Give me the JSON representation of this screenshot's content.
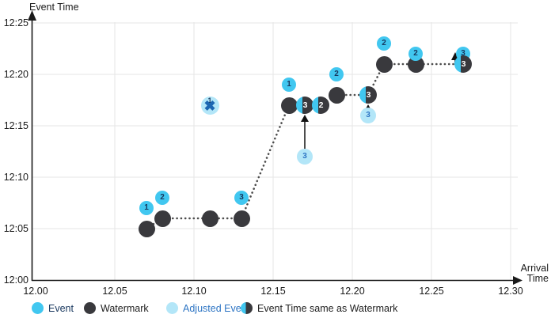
{
  "axis_titles": {
    "y": "Event Time",
    "x": "Arrival\nTime"
  },
  "colors": {
    "event": "#41C7F0",
    "adjusted_event": "#B3E6F8",
    "watermark": "#39393D",
    "number_navy": "#17365D",
    "number_blue": "#2E75C4",
    "dropped_x": "#1C66B2",
    "grid": "#E6E6E6",
    "axis": "#1a1a1a",
    "watermark_line": "#4D4D4D"
  },
  "chart_data": {
    "type": "scatter",
    "title": "",
    "xlabel": "Arrival Time",
    "ylabel": "Event Time",
    "x_axis": {
      "ticks": [
        "12.00",
        "12.05",
        "12.10",
        "12.15",
        "12.20",
        "12.25",
        "12.30"
      ],
      "range": [
        12.0,
        12.3
      ]
    },
    "y_axis": {
      "ticks": [
        "12:00",
        "12:05",
        "12:10",
        "12:15",
        "12:20",
        "12:25"
      ],
      "range": [
        "12:00",
        "12:25"
      ]
    },
    "grid": "on",
    "events": [
      {
        "id": "1",
        "arrival": 12.07,
        "event_time": "12:07"
      },
      {
        "id": "2",
        "arrival": 12.08,
        "event_time": "12:08"
      },
      {
        "id": "3",
        "arrival": 12.13,
        "event_time": "12:08"
      },
      {
        "id": "1",
        "arrival": 12.16,
        "event_time": "12:19"
      },
      {
        "id": "2",
        "arrival": 12.19,
        "event_time": "12:20"
      },
      {
        "id": "2",
        "arrival": 12.22,
        "event_time": "12:23"
      },
      {
        "id": "2",
        "arrival": 12.24,
        "event_time": "12:22"
      },
      {
        "id": "3",
        "arrival": 12.27,
        "event_time": "12:22"
      }
    ],
    "watermarks": [
      {
        "arrival": 12.07,
        "event_time": "12:05"
      },
      {
        "arrival": 12.08,
        "event_time": "12:06"
      },
      {
        "arrival": 12.11,
        "event_time": "12:06"
      },
      {
        "arrival": 12.13,
        "event_time": "12:06"
      },
      {
        "arrival": 12.16,
        "event_time": "12:17"
      },
      {
        "arrival": 12.19,
        "event_time": "12:18"
      },
      {
        "arrival": 12.22,
        "event_time": "12:21"
      },
      {
        "arrival": 12.24,
        "event_time": "12:21"
      }
    ],
    "same_as_watermark": [
      {
        "id": "3",
        "arrival": 12.17,
        "event_time": "12:17"
      },
      {
        "id": "2",
        "arrival": 12.18,
        "event_time": "12:17"
      },
      {
        "id": "3",
        "arrival": 12.21,
        "event_time": "12:18"
      },
      {
        "id": "3",
        "arrival": 12.27,
        "event_time": "12:21",
        "offset_arrow": true
      }
    ],
    "adjusted_events": [
      {
        "id": "3",
        "arrival": 12.17,
        "event_time": "12:12",
        "adjusted_to": "12:17"
      },
      {
        "id": "3",
        "arrival": 12.21,
        "event_time": "12:16",
        "adjusted_to": "12:18"
      }
    ],
    "dropped_events": [
      {
        "id": "1",
        "arrival": 12.11,
        "event_time": "12:17"
      }
    ],
    "legend": [
      {
        "label": "Event",
        "swatch": "event",
        "text_color": "#17365D"
      },
      {
        "label": "Watermark",
        "swatch": "watermark",
        "text_color": "#212121"
      },
      {
        "label": "Adjusted Event",
        "swatch": "adjusted",
        "text_color": "#2E75C4"
      },
      {
        "label": "Event Time same as Watermark",
        "swatch": "same",
        "text_color": "#212121"
      }
    ],
    "legend_position": "bottom"
  }
}
